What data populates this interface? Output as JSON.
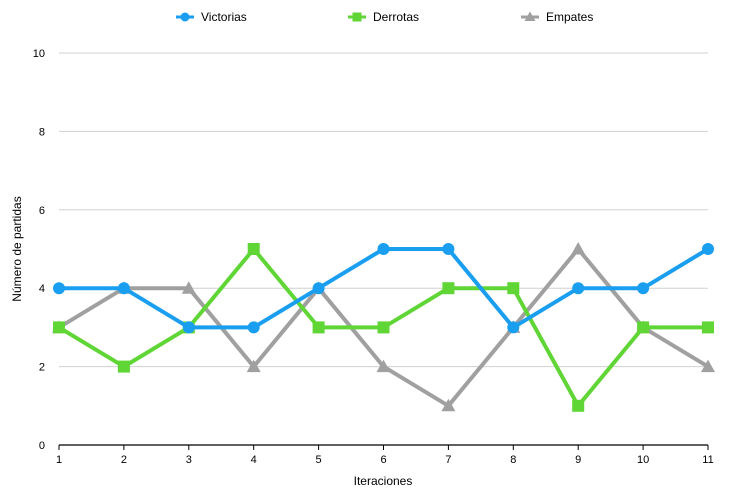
{
  "chart_data": {
    "type": "line",
    "title": "",
    "xlabel": "Iteraciones",
    "ylabel": "Número de partidas",
    "categories": [
      "1",
      "2",
      "3",
      "4",
      "5",
      "6",
      "7",
      "8",
      "9",
      "10",
      "11"
    ],
    "ylim": [
      0,
      10
    ],
    "yticks": [
      "0",
      "2",
      "4",
      "6",
      "8",
      "10"
    ],
    "grid": true,
    "legend_position": "top",
    "series": [
      {
        "name": "Victorias",
        "color": "#1a9ef0",
        "marker": "circle",
        "values": [
          4,
          4,
          3,
          3,
          4,
          5,
          5,
          3,
          4,
          4,
          5
        ]
      },
      {
        "name": "Derrotas",
        "color": "#5fd635",
        "marker": "square",
        "values": [
          3,
          2,
          3,
          5,
          3,
          3,
          4,
          4,
          1,
          3,
          3
        ]
      },
      {
        "name": "Empates",
        "color": "#a0a0a0",
        "marker": "triangle",
        "values": [
          3,
          4,
          4,
          2,
          4,
          2,
          1,
          3,
          5,
          3,
          2
        ]
      }
    ]
  }
}
